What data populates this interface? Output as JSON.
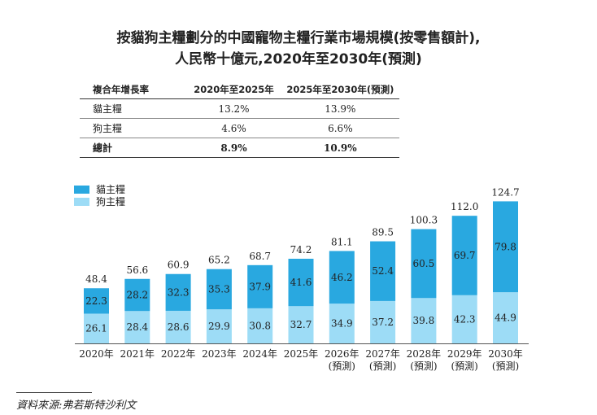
{
  "title": {
    "line1": "按貓狗主糧劃分的中國寵物主糧行業市場規模(按零售額計),",
    "line2": "人民幣十億元,2020年至2030年(預測)"
  },
  "cagr_table": {
    "headers": [
      "複合年增長率",
      "2020年至2025年",
      "2025年至2030年(預測)"
    ],
    "rows": [
      {
        "label": "貓主糧",
        "v1": "13.2%",
        "v2": "13.9%"
      },
      {
        "label": "狗主糧",
        "v1": "4.6%",
        "v2": "6.6%"
      },
      {
        "label": "總計",
        "v1": "8.9%",
        "v2": "10.9%"
      }
    ]
  },
  "source": "資料來源:弗若斯特沙利文",
  "chart_data": {
    "type": "bar",
    "stacked": true,
    "categories": [
      "2020年",
      "2021年",
      "2022年",
      "2023年",
      "2024年",
      "2025年",
      "2026年",
      "2027年",
      "2028年",
      "2029年",
      "2030年"
    ],
    "category_notes": [
      "",
      "",
      "",
      "",
      "",
      "",
      "(預測)",
      "(預測)",
      "(預測)",
      "(預測)",
      "(預測)"
    ],
    "series": [
      {
        "name": "狗主糧",
        "color": "#9ddcf6",
        "values": [
          26.1,
          28.4,
          28.6,
          29.9,
          30.8,
          32.7,
          34.9,
          37.2,
          39.8,
          42.3,
          44.9
        ]
      },
      {
        "name": "貓主糧",
        "color": "#29a8e0",
        "values": [
          22.3,
          28.2,
          32.3,
          35.3,
          37.9,
          41.6,
          46.2,
          52.4,
          60.5,
          69.7,
          79.8
        ]
      }
    ],
    "totals": [
      48.4,
      56.6,
      60.9,
      65.2,
      68.7,
      74.2,
      81.1,
      89.5,
      100.3,
      112.0,
      124.7
    ],
    "total_labels": [
      "48.4",
      "56.6",
      "60.9",
      "65.2",
      "68.7",
      "74.2",
      "81.1",
      "89.5",
      "100.3",
      "112.0",
      "124.7"
    ],
    "legend": [
      {
        "name": "貓主糧",
        "color": "#29a8e0"
      },
      {
        "name": "狗主糧",
        "color": "#9ddcf6"
      }
    ],
    "legend_position": "top-left",
    "ylim": [
      0,
      130
    ],
    "grid": false
  }
}
